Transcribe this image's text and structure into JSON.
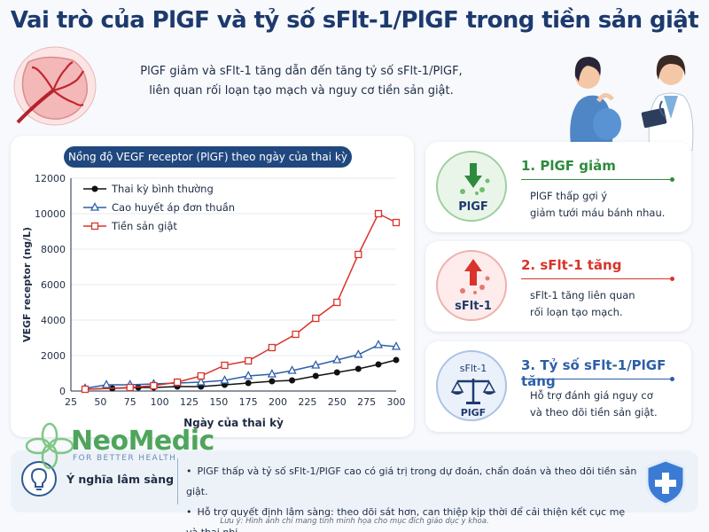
{
  "title": "Vai trò của PlGF và tỷ số sFlt-1/PlGF trong tiền sản giật",
  "subtitle": {
    "line1": "PlGF giảm và sFlt-1 tăng dẫn đến tăng tỷ số sFlt-1/PlGF,",
    "line2": "liên quan rối loạn tạo mạch và nguy cơ tiền sản giật."
  },
  "colors": {
    "navy": "#1d3a6e",
    "green": "#2e8b3d",
    "red": "#d9342b",
    "blue": "#2d5fa8",
    "black": "#111111"
  },
  "chart_data": {
    "type": "line",
    "title": "Nồng độ VEGF receptor (PlGF) theo ngày của thai kỳ",
    "xlabel": "Ngày của thai kỳ",
    "ylabel": "VEGF receptor (ng/L)",
    "xlim": [
      25,
      300
    ],
    "ylim": [
      0,
      12000
    ],
    "xticks": [
      25,
      50,
      75,
      100,
      125,
      150,
      175,
      200,
      225,
      250,
      275,
      300
    ],
    "yticks": [
      0,
      2000,
      4000,
      6000,
      8000,
      10000,
      12000
    ],
    "legend_position": "top-left",
    "series": [
      {
        "name": "Thai kỳ bình thường",
        "color": "#111111",
        "marker": "circle",
        "x": [
          37,
          60,
          82,
          95,
          115,
          135,
          155,
          175,
          195,
          212,
          232,
          250,
          268,
          285,
          300
        ],
        "y": [
          100,
          150,
          200,
          200,
          250,
          250,
          350,
          450,
          550,
          600,
          850,
          1050,
          1250,
          1500,
          1750
        ]
      },
      {
        "name": "Cao huyết áp đơn thuần",
        "color": "#2d5fa8",
        "marker": "triangle",
        "x": [
          37,
          55,
          75,
          95,
          115,
          135,
          155,
          175,
          195,
          212,
          232,
          250,
          268,
          285,
          300
        ],
        "y": [
          150,
          350,
          350,
          400,
          450,
          500,
          600,
          850,
          950,
          1150,
          1450,
          1750,
          2050,
          2600,
          2500
        ]
      },
      {
        "name": "Tiền sản giật",
        "color": "#d9342b",
        "marker": "square",
        "x": [
          37,
          75,
          95,
          115,
          135,
          155,
          175,
          195,
          215,
          232,
          250,
          268,
          285,
          300
        ],
        "y": [
          100,
          200,
          300,
          500,
          850,
          1450,
          1700,
          2450,
          3200,
          4100,
          5000,
          7700,
          10000,
          9500
        ]
      }
    ]
  },
  "cards": [
    {
      "icon": "down-arrow-icon",
      "circle_label": "PlGF",
      "heading": "1. PlGF giảm",
      "line1": "PlGF thấp gợi ý",
      "line2": "giảm tưới máu bánh nhau."
    },
    {
      "icon": "up-arrow-icon",
      "circle_label": "sFlt-1",
      "heading": "2. sFlt-1 tăng",
      "line1": "sFlt-1 tăng liên quan",
      "line2": "rối loạn tạo mạch."
    },
    {
      "icon": "balance-scale-icon",
      "circle_label_top": "sFlt-1",
      "circle_label": "PlGF",
      "heading": "3. Tỷ số sFlt-1/PlGF tăng",
      "line1": "Hỗ trợ đánh giá nguy cơ",
      "line2": "và theo dõi tiền sản giật."
    }
  ],
  "logo": {
    "name": "NeoMedic",
    "tagline": "FOR BETTER HEALTH"
  },
  "clinical": {
    "label": "Ý nghĩa lâm sàng",
    "points": [
      "PlGF thấp và tỷ số sFlt-1/PlGF cao có giá trị trong dự đoán, chẩn đoán và theo dõi tiền sản giật.",
      "Hỗ trợ quyết định lâm sàng: theo dõi sát hơn, can thiệp kịp thời để cải thiện kết cục mẹ và thai nhi."
    ]
  },
  "note": "Lưu ý: Hình ảnh chỉ mang tính minh họa cho mục đích giáo dục y khoa."
}
